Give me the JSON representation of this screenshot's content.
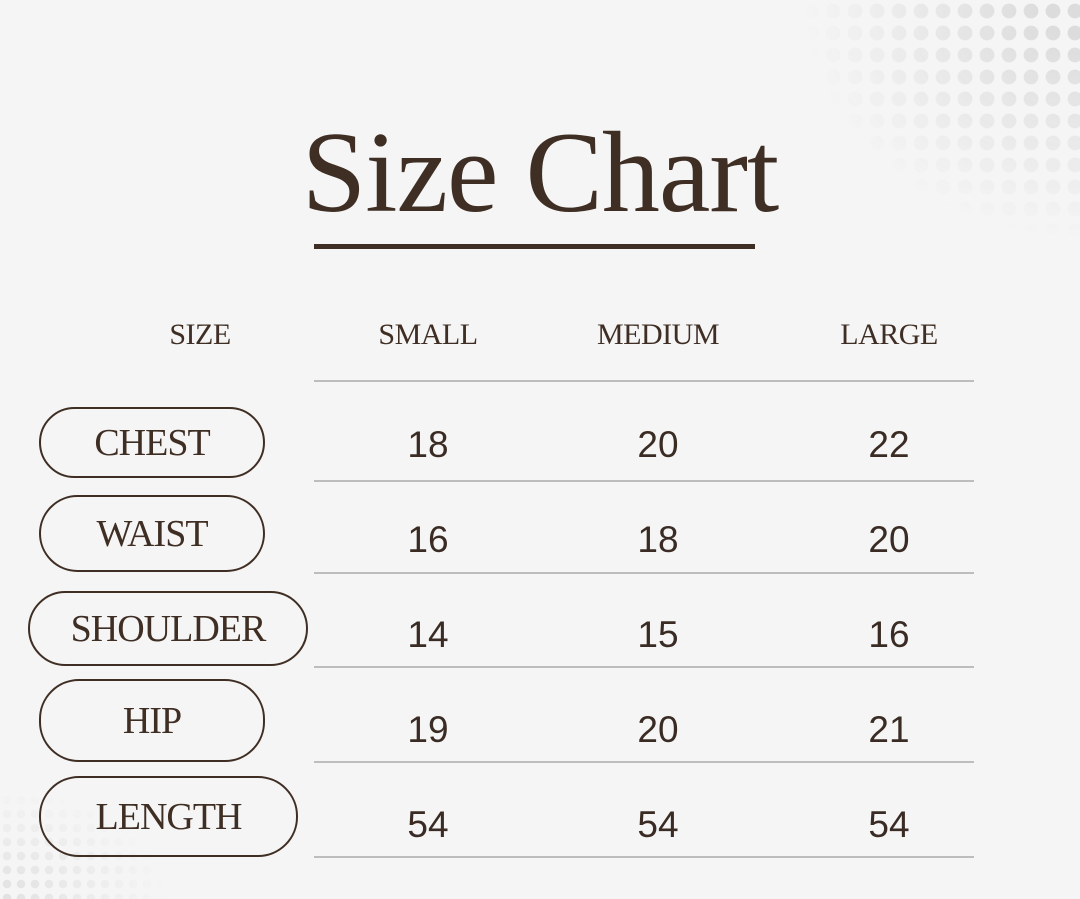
{
  "title": "Size Chart",
  "colors": {
    "text": "#3f2e24",
    "background": "#f5f5f5",
    "rule": "#bdbdbd"
  },
  "chart_data": {
    "type": "table",
    "title": "Size Chart",
    "columns": [
      "SIZE",
      "SMALL",
      "MEDIUM",
      "LARGE"
    ],
    "rows": [
      {
        "label": "CHEST",
        "values": [
          "18",
          "20",
          "22"
        ]
      },
      {
        "label": "WAIST",
        "values": [
          "16",
          "18",
          "20"
        ]
      },
      {
        "label": "SHOULDER",
        "values": [
          "14",
          "15",
          "16"
        ]
      },
      {
        "label": "HIP",
        "values": [
          "19",
          "20",
          "21"
        ]
      },
      {
        "label": "LENGTH",
        "values": [
          "54",
          "54",
          "54"
        ]
      }
    ]
  }
}
